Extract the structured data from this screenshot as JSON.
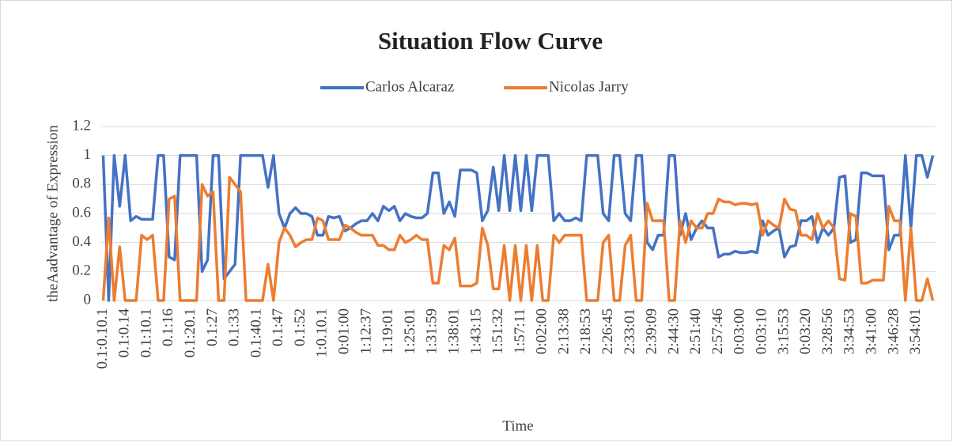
{
  "chart_data": {
    "type": "line",
    "title": "Situation Flow Curve",
    "x_label": "Time",
    "y_label": "theAadvantage of Expression",
    "categories": [
      "0.1:0.10.1",
      null,
      null,
      null,
      "0.1:0.14",
      null,
      null,
      null,
      "0.1:10.1",
      null,
      null,
      null,
      "0.1:16",
      null,
      null,
      null,
      "0.1:20.1",
      null,
      null,
      null,
      "0.1:27",
      null,
      null,
      null,
      "0.1:33",
      null,
      null,
      null,
      "0.1:40.1",
      null,
      null,
      null,
      "0.1:47",
      null,
      null,
      null,
      "0.1:52",
      null,
      null,
      null,
      "1:0.10.1",
      null,
      null,
      null,
      "0:01:00",
      null,
      null,
      null,
      "1:12:37",
      null,
      null,
      null,
      "1:19:01",
      null,
      null,
      null,
      "1:25:01",
      null,
      null,
      null,
      "1:31:59",
      null,
      null,
      null,
      "1:38:01",
      null,
      null,
      null,
      "1:43:15",
      null,
      null,
      null,
      "1:51:32",
      null,
      null,
      null,
      "1:57:11",
      null,
      null,
      null,
      "0:02:00",
      null,
      null,
      null,
      "2:13:38",
      null,
      null,
      null,
      "2:18:53",
      null,
      null,
      null,
      "2:26:45",
      null,
      null,
      null,
      "2:33:01",
      null,
      null,
      null,
      "2:39:09",
      null,
      null,
      null,
      "2:44:30",
      null,
      null,
      null,
      "2:51:40",
      null,
      null,
      null,
      "2:57:46",
      null,
      null,
      null,
      "0:03:00",
      null,
      null,
      null,
      "0:03:10",
      null,
      null,
      null,
      "3:15:53",
      null,
      null,
      null,
      "0:03:20",
      null,
      null,
      null,
      "3:28:56",
      null,
      null,
      null,
      "3:34:53",
      null,
      null,
      null,
      "3:41:00",
      null,
      null,
      null,
      "3:46:28",
      null,
      null,
      null,
      "3:54:01",
      null,
      null,
      null
    ],
    "series": [
      {
        "name": "Carlos Alcaraz",
        "color": "#4472c4",
        "values": [
          1,
          0,
          1,
          0.65,
          1,
          0.55,
          0.58,
          0.56,
          0.56,
          0.56,
          1,
          1,
          0.3,
          0.28,
          1,
          1,
          1,
          1,
          0.2,
          0.28,
          1,
          1,
          0.15,
          0.2,
          0.25,
          1,
          1,
          1,
          1,
          1,
          0.78,
          1,
          0.6,
          0.5,
          0.6,
          0.64,
          0.6,
          0.6,
          0.58,
          0.45,
          0.45,
          0.58,
          0.57,
          0.58,
          0.48,
          0.5,
          0.53,
          0.55,
          0.55,
          0.6,
          0.55,
          0.65,
          0.62,
          0.65,
          0.55,
          0.6,
          0.58,
          0.57,
          0.57,
          0.6,
          0.88,
          0.88,
          0.6,
          0.68,
          0.58,
          0.9,
          0.9,
          0.9,
          0.88,
          0.55,
          0.62,
          0.92,
          0.62,
          1,
          0.62,
          1,
          0.62,
          1,
          0.62,
          1,
          1,
          1,
          0.55,
          0.6,
          0.55,
          0.55,
          0.57,
          0.55,
          1,
          1,
          1,
          0.6,
          0.55,
          1,
          1,
          0.6,
          0.55,
          1,
          1,
          0.4,
          0.35,
          0.45,
          0.45,
          1,
          1,
          0.45,
          0.6,
          0.42,
          0.5,
          0.55,
          0.5,
          0.5,
          0.3,
          0.32,
          0.32,
          0.34,
          0.33,
          0.33,
          0.34,
          0.33,
          0.55,
          0.45,
          0.48,
          0.5,
          0.3,
          0.37,
          0.38,
          0.55,
          0.55,
          0.58,
          0.4,
          0.5,
          0.45,
          0.5,
          0.85,
          0.86,
          0.4,
          0.42,
          0.88,
          0.88,
          0.86,
          0.86,
          0.86,
          0.35,
          0.45,
          0.45,
          1,
          0.5,
          1,
          1,
          0.85,
          1
        ]
      },
      {
        "name": "Nicolas Jarry",
        "color": "#ed7d31",
        "values": [
          0,
          0.57,
          0,
          0.37,
          0,
          0,
          0,
          0.45,
          0.42,
          0.45,
          0,
          0,
          0.7,
          0.72,
          0,
          0,
          0,
          0,
          0.8,
          0.72,
          0.75,
          0,
          0,
          0.85,
          0.8,
          0.75,
          0,
          0,
          0,
          0,
          0.25,
          0,
          0.4,
          0.5,
          0.45,
          0.37,
          0.4,
          0.42,
          0.42,
          0.57,
          0.55,
          0.42,
          0.42,
          0.42,
          0.52,
          0.5,
          0.47,
          0.45,
          0.45,
          0.45,
          0.38,
          0.38,
          0.35,
          0.35,
          0.45,
          0.4,
          0.42,
          0.45,
          0.42,
          0.42,
          0.12,
          0.12,
          0.38,
          0.35,
          0.43,
          0.1,
          0.1,
          0.1,
          0.12,
          0.5,
          0.38,
          0.08,
          0.08,
          0.38,
          0,
          0.38,
          0,
          0.38,
          0,
          0.38,
          0,
          0,
          0.45,
          0.4,
          0.45,
          0.45,
          0.45,
          0.45,
          0,
          0,
          0,
          0.4,
          0.45,
          0,
          0,
          0.38,
          0.45,
          0,
          0,
          0.67,
          0.55,
          0.55,
          0.55,
          0,
          0,
          0.55,
          0.4,
          0.55,
          0.5,
          0.5,
          0.6,
          0.6,
          0.7,
          0.68,
          0.68,
          0.66,
          0.67,
          0.67,
          0.66,
          0.67,
          0.45,
          0.55,
          0.52,
          0.5,
          0.7,
          0.63,
          0.62,
          0.45,
          0.45,
          0.42,
          0.6,
          0.5,
          0.55,
          0.5,
          0.15,
          0.14,
          0.6,
          0.58,
          0.12,
          0.12,
          0.14,
          0.14,
          0.14,
          0.65,
          0.55,
          0.55,
          0,
          0.5,
          0,
          0,
          0.15,
          0
        ]
      }
    ],
    "ylim": [
      0,
      1.2
    ],
    "yticks": [
      0,
      0.2,
      0.4,
      0.6,
      0.8,
      1,
      1.2
    ],
    "grid": true,
    "legend": "top"
  }
}
